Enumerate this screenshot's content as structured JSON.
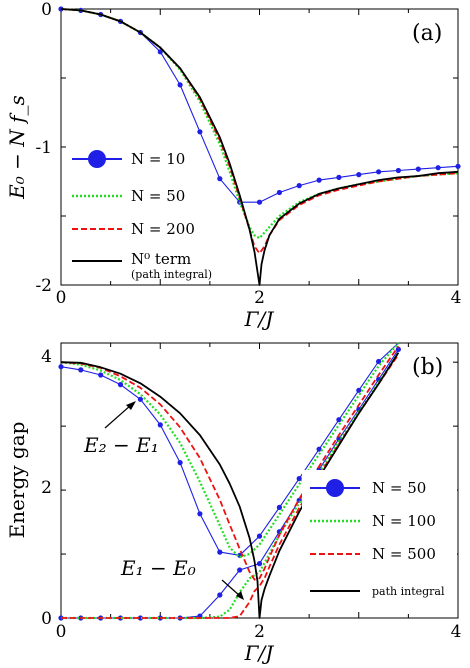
{
  "colors": {
    "blue": "#1f1fe6",
    "green": "#22dd22",
    "red": "#ee1111",
    "black": "#000000"
  },
  "chart_data": [
    {
      "type": "line",
      "panel_label": "(a)",
      "xlabel": "Γ/J",
      "ylabel": "E₀ − N f_s",
      "xlim": [
        0,
        4
      ],
      "ylim": [
        -2,
        0
      ],
      "xticks": [
        "0",
        "2",
        "4"
      ],
      "yticks": [
        "0",
        "-1",
        "-2"
      ],
      "legend_position": "left",
      "series": [
        {
          "name": "N = 10",
          "color": "blue",
          "style": "solid-markers",
          "x": [
            0,
            0.2,
            0.4,
            0.6,
            0.8,
            1.0,
            1.2,
            1.4,
            1.6,
            1.8,
            2.0,
            2.2,
            2.4,
            2.6,
            2.8,
            3.0,
            3.2,
            3.4,
            3.6,
            3.8,
            4.0
          ],
          "y": [
            0,
            -0.01,
            -0.04,
            -0.09,
            -0.17,
            -0.31,
            -0.55,
            -0.89,
            -1.23,
            -1.4,
            -1.4,
            -1.33,
            -1.28,
            -1.24,
            -1.22,
            -1.2,
            -1.18,
            -1.17,
            -1.16,
            -1.15,
            -1.14
          ]
        },
        {
          "name": "N = 50",
          "color": "green",
          "style": "dotted",
          "x": [
            0,
            0.2,
            0.4,
            0.6,
            0.8,
            1.0,
            1.2,
            1.4,
            1.6,
            1.7,
            1.8,
            1.9,
            1.95,
            2.0,
            2.1,
            2.2,
            2.4,
            2.6,
            2.8,
            3.0,
            3.2,
            3.4,
            3.6,
            3.8,
            4.0
          ],
          "y": [
            0,
            -0.01,
            -0.04,
            -0.09,
            -0.17,
            -0.28,
            -0.44,
            -0.67,
            -0.98,
            -1.18,
            -1.4,
            -1.58,
            -1.64,
            -1.66,
            -1.58,
            -1.5,
            -1.4,
            -1.34,
            -1.3,
            -1.27,
            -1.25,
            -1.23,
            -1.21,
            -1.2,
            -1.19
          ]
        },
        {
          "name": "N = 200",
          "color": "red",
          "style": "dashed",
          "x": [
            0,
            0.2,
            0.4,
            0.6,
            0.8,
            1.0,
            1.2,
            1.4,
            1.6,
            1.7,
            1.8,
            1.9,
            1.95,
            2.0,
            2.05,
            2.1,
            2.2,
            2.4,
            2.6,
            2.8,
            3.0,
            3.2,
            3.4,
            3.6,
            3.8,
            4.0
          ],
          "y": [
            0,
            -0.01,
            -0.04,
            -0.09,
            -0.17,
            -0.28,
            -0.43,
            -0.65,
            -0.95,
            -1.14,
            -1.37,
            -1.6,
            -1.72,
            -1.77,
            -1.72,
            -1.64,
            -1.53,
            -1.42,
            -1.35,
            -1.31,
            -1.28,
            -1.25,
            -1.23,
            -1.21,
            -1.2,
            -1.19
          ]
        },
        {
          "name": "N⁰ term (path integral)",
          "color": "black",
          "style": "solid",
          "x": [
            0,
            0.2,
            0.4,
            0.6,
            0.8,
            1.0,
            1.2,
            1.4,
            1.6,
            1.7,
            1.8,
            1.9,
            1.95,
            2.0,
            2.02,
            2.05,
            2.1,
            2.2,
            2.4,
            2.6,
            2.8,
            3.0,
            3.2,
            3.4,
            3.6,
            3.8,
            4.0
          ],
          "y": [
            0,
            -0.01,
            -0.04,
            -0.09,
            -0.17,
            -0.28,
            -0.43,
            -0.64,
            -0.93,
            -1.12,
            -1.35,
            -1.6,
            -1.76,
            -2.0,
            -1.85,
            -1.75,
            -1.64,
            -1.52,
            -1.41,
            -1.34,
            -1.3,
            -1.27,
            -1.24,
            -1.22,
            -1.21,
            -1.19,
            -1.18
          ]
        }
      ]
    },
    {
      "type": "line",
      "panel_label": "(b)",
      "xlabel": "Γ/J",
      "ylabel": "Energy gap",
      "xlim": [
        0,
        4
      ],
      "ylim": [
        0,
        4.3
      ],
      "xticks": [
        "0",
        "2",
        "4"
      ],
      "yticks": [
        "0",
        "2",
        "4"
      ],
      "legend_position": "right",
      "annotations": [
        "E₂ − E₁",
        "E₁ − E₀"
      ],
      "series": [
        {
          "name": "N = 50",
          "color": "blue",
          "style": "solid-markers",
          "x": [
            0,
            0.2,
            0.4,
            0.6,
            0.8,
            1.0,
            1.2,
            1.4,
            1.6,
            1.8,
            2.0,
            2.2,
            2.4,
            2.6,
            2.8,
            3.0,
            3.2,
            3.4
          ],
          "y": [
            3.93,
            3.88,
            3.8,
            3.65,
            3.42,
            3.02,
            2.43,
            1.63,
            1.03,
            0.98,
            1.28,
            1.73,
            2.18,
            2.64,
            3.1,
            3.56,
            4.01,
            4.45
          ],
          "y2": [
            0,
            0,
            0,
            0,
            0,
            0,
            0,
            0.03,
            0.36,
            0.75,
            0.85,
            1.35,
            1.84,
            2.32,
            2.8,
            3.26,
            3.73,
            4.2
          ]
        },
        {
          "name": "N = 100",
          "color": "green",
          "style": "dotted",
          "x": [
            0,
            0.2,
            0.4,
            0.6,
            0.8,
            1.0,
            1.2,
            1.4,
            1.6,
            1.7,
            1.8,
            1.9,
            2.0,
            2.1,
            2.2,
            2.4,
            2.6,
            2.8,
            3.0,
            3.2,
            3.4
          ],
          "y": [
            4.0,
            3.96,
            3.87,
            3.72,
            3.5,
            3.18,
            2.74,
            2.13,
            1.45,
            1.1,
            0.95,
            1.0,
            1.15,
            1.38,
            1.62,
            2.09,
            2.56,
            3.02,
            3.48,
            3.94,
            4.4
          ],
          "y2": [
            0,
            0,
            0,
            0,
            0,
            0,
            0,
            0,
            0.02,
            0.13,
            0.4,
            0.62,
            0.72,
            1.0,
            1.3,
            1.8,
            2.28,
            2.76,
            3.22,
            3.68,
            4.15
          ]
        },
        {
          "name": "N = 500",
          "color": "red",
          "style": "dashed",
          "x": [
            0,
            0.2,
            0.4,
            0.6,
            0.8,
            1.0,
            1.2,
            1.4,
            1.6,
            1.7,
            1.8,
            1.9,
            1.95,
            2.0,
            2.05,
            2.1,
            2.2,
            2.4,
            2.6,
            2.8,
            3.0,
            3.2,
            3.4
          ],
          "y": [
            4.0,
            3.98,
            3.91,
            3.78,
            3.6,
            3.34,
            2.98,
            2.5,
            1.85,
            1.46,
            1.08,
            0.72,
            0.6,
            0.62,
            0.77,
            0.95,
            1.3,
            1.86,
            2.37,
            2.86,
            3.33,
            3.8,
            4.25
          ],
          "y2": [
            0,
            0,
            0,
            0,
            0,
            0,
            0,
            0,
            0,
            0,
            0.03,
            0.25,
            0.42,
            0.5,
            0.62,
            0.8,
            1.15,
            1.72,
            2.23,
            2.72,
            3.2,
            3.66,
            4.12
          ]
        },
        {
          "name": "path integral",
          "color": "black",
          "style": "solid",
          "x": [
            0,
            0.2,
            0.4,
            0.6,
            0.8,
            1.0,
            1.2,
            1.4,
            1.6,
            1.7,
            1.8,
            1.9,
            1.95,
            1.98,
            2.0,
            2.02,
            2.05,
            2.1,
            2.2,
            2.4,
            2.6,
            2.8,
            3.0,
            3.2,
            3.4
          ],
          "y": [
            4.0,
            3.99,
            3.92,
            3.82,
            3.67,
            3.46,
            3.2,
            2.86,
            2.4,
            2.1,
            1.74,
            1.25,
            0.89,
            0.57,
            0,
            0.28,
            0.45,
            0.66,
            1.05,
            1.66,
            2.2,
            2.7,
            3.2,
            3.66,
            4.15
          ],
          "y2": []
        }
      ]
    }
  ],
  "legend_a": {
    "e1": "N = 10",
    "e2": "N = 50",
    "e3": "N = 200",
    "e4": "N⁰ term",
    "e4b": "(path integral)"
  },
  "legend_b": {
    "e1": "N = 50",
    "e2": "N = 100",
    "e3": "N = 500",
    "e4": "path integral"
  },
  "labels": {
    "a_panel": "(a)",
    "b_panel": "(b)",
    "a_xlabel": "Γ/J",
    "b_xlabel": "Γ/J",
    "a_ylabel": "E₀ − N f_s",
    "b_ylabel": "Energy gap",
    "annot1": "E₂ − E₁",
    "annot2": "E₁ − E₀"
  }
}
